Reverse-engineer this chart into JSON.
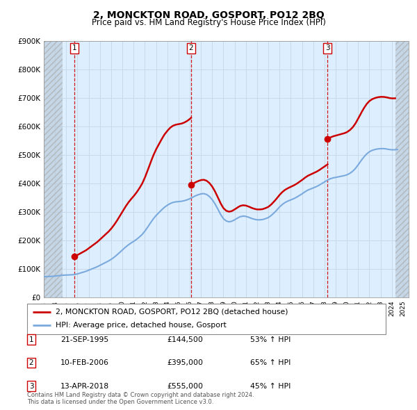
{
  "title": "2, MONCKTON ROAD, GOSPORT, PO12 2BQ",
  "subtitle": "Price paid vs. HM Land Registry's House Price Index (HPI)",
  "ylim": [
    0,
    900000
  ],
  "yticks": [
    0,
    100000,
    200000,
    300000,
    400000,
    500000,
    600000,
    700000,
    800000,
    900000
  ],
  "ytick_labels": [
    "£0",
    "£100K",
    "£200K",
    "£300K",
    "£400K",
    "£500K",
    "£600K",
    "£700K",
    "£800K",
    "£900K"
  ],
  "xlim_start": 1993.0,
  "xlim_end": 2025.5,
  "hatch_left_end": 1994.7,
  "hatch_right_start": 2024.3,
  "purchases": [
    {
      "num": 1,
      "date_str": "21-SEP-1995",
      "price": 144500,
      "pct": "53%",
      "x": 1995.72
    },
    {
      "num": 2,
      "date_str": "10-FEB-2006",
      "price": 395000,
      "pct": "65%",
      "x": 2006.12
    },
    {
      "num": 3,
      "date_str": "13-APR-2018",
      "price": 555000,
      "pct": "45%",
      "x": 2018.28
    }
  ],
  "property_line_color": "#cc0000",
  "hpi_line_color": "#7aaadd",
  "grid_color": "#c8daea",
  "bg_color": "#ddeeff",
  "legend_label_property": "2, MONCKTON ROAD, GOSPORT, PO12 2BQ (detached house)",
  "legend_label_hpi": "HPI: Average price, detached house, Gosport",
  "footer": "Contains HM Land Registry data © Crown copyright and database right 2024.\nThis data is licensed under the Open Government Licence v3.0.",
  "hpi_x": [
    1993.0,
    1993.25,
    1993.5,
    1993.75,
    1994.0,
    1994.25,
    1994.5,
    1994.75,
    1995.0,
    1995.25,
    1995.5,
    1995.75,
    1996.0,
    1996.25,
    1996.5,
    1996.75,
    1997.0,
    1997.25,
    1997.5,
    1997.75,
    1998.0,
    1998.25,
    1998.5,
    1998.75,
    1999.0,
    1999.25,
    1999.5,
    1999.75,
    2000.0,
    2000.25,
    2000.5,
    2000.75,
    2001.0,
    2001.25,
    2001.5,
    2001.75,
    2002.0,
    2002.25,
    2002.5,
    2002.75,
    2003.0,
    2003.25,
    2003.5,
    2003.75,
    2004.0,
    2004.25,
    2004.5,
    2004.75,
    2005.0,
    2005.25,
    2005.5,
    2005.75,
    2006.0,
    2006.25,
    2006.5,
    2006.75,
    2007.0,
    2007.25,
    2007.5,
    2007.75,
    2008.0,
    2008.25,
    2008.5,
    2008.75,
    2009.0,
    2009.25,
    2009.5,
    2009.75,
    2010.0,
    2010.25,
    2010.5,
    2010.75,
    2011.0,
    2011.25,
    2011.5,
    2011.75,
    2012.0,
    2012.25,
    2012.5,
    2012.75,
    2013.0,
    2013.25,
    2013.5,
    2013.75,
    2014.0,
    2014.25,
    2014.5,
    2014.75,
    2015.0,
    2015.25,
    2015.5,
    2015.75,
    2016.0,
    2016.25,
    2016.5,
    2016.75,
    2017.0,
    2017.25,
    2017.5,
    2017.75,
    2018.0,
    2018.25,
    2018.5,
    2018.75,
    2019.0,
    2019.25,
    2019.5,
    2019.75,
    2020.0,
    2020.25,
    2020.5,
    2020.75,
    2021.0,
    2021.25,
    2021.5,
    2021.75,
    2022.0,
    2022.25,
    2022.5,
    2022.75,
    2023.0,
    2023.25,
    2023.5,
    2023.75,
    2024.0,
    2024.25,
    2024.5
  ],
  "hpi_y": [
    72000,
    72500,
    73000,
    73500,
    74500,
    75500,
    76500,
    77500,
    78000,
    78500,
    79000,
    80000,
    82000,
    85000,
    88000,
    91000,
    95000,
    99000,
    103000,
    107000,
    112000,
    117000,
    122000,
    127000,
    133000,
    140000,
    148000,
    157000,
    166000,
    175000,
    183000,
    190000,
    196000,
    203000,
    211000,
    220000,
    232000,
    246000,
    261000,
    275000,
    287000,
    297000,
    307000,
    316000,
    323000,
    329000,
    333000,
    335000,
    336000,
    337000,
    339000,
    342000,
    346000,
    351000,
    356000,
    360000,
    363000,
    364000,
    361000,
    354000,
    343000,
    328000,
    310000,
    291000,
    276000,
    268000,
    265000,
    267000,
    272000,
    278000,
    283000,
    285000,
    284000,
    281000,
    277000,
    274000,
    272000,
    272000,
    273000,
    276000,
    280000,
    287000,
    296000,
    306000,
    317000,
    326000,
    333000,
    338000,
    342000,
    346000,
    351000,
    357000,
    363000,
    370000,
    376000,
    380000,
    384000,
    388000,
    393000,
    399000,
    405000,
    411000,
    416000,
    419000,
    421000,
    423000,
    425000,
    427000,
    430000,
    435000,
    442000,
    452000,
    465000,
    479000,
    492000,
    503000,
    511000,
    516000,
    519000,
    521000,
    522000,
    522000,
    521000,
    519000,
    518000,
    518000,
    519000
  ]
}
